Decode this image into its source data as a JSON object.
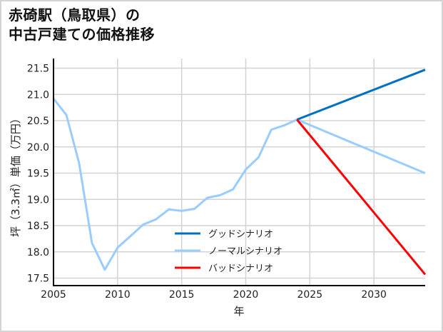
{
  "title": {
    "line1": "赤碕駅（鳥取県）の",
    "line2": "中古戸建ての価格推移"
  },
  "chart_data": {
    "type": "line",
    "title": "赤碕駅（鳥取県）の中古戸建ての価格推移",
    "xlabel": "年",
    "ylabel": "坪（3.3㎡）単価（万円）",
    "xlim": [
      2005,
      2034
    ],
    "ylim": [
      17.37,
      21.65
    ],
    "xticks": [
      2005,
      2010,
      2015,
      2020,
      2025,
      2030
    ],
    "yticks": [
      17.5,
      18.0,
      18.5,
      19.0,
      19.5,
      20.0,
      20.5,
      21.0,
      21.5
    ],
    "ytick_labels": [
      "17.5",
      "18.0",
      "18.5",
      "19.0",
      "19.5",
      "20.0",
      "20.5",
      "21.0",
      "21.5"
    ],
    "grid": true,
    "legend_position": "lower center (inside plot)",
    "series": [
      {
        "name": "ノーマルシナリオ",
        "color": "#99ccff",
        "x": [
          2005,
          2006,
          2007,
          2008,
          2009,
          2010,
          2011,
          2012,
          2013,
          2014,
          2015,
          2016,
          2017,
          2018,
          2019,
          2020,
          2021,
          2022,
          2023,
          2024,
          2034
        ],
        "values": [
          20.92,
          20.61,
          19.69,
          18.17,
          17.66,
          18.08,
          18.3,
          18.52,
          18.62,
          18.81,
          18.78,
          18.82,
          19.03,
          19.08,
          19.19,
          19.57,
          19.8,
          20.33,
          20.41,
          20.52,
          19.5
        ]
      },
      {
        "name": "グッドシナリオ",
        "color": "#0070c0",
        "x": [
          2024,
          2034
        ],
        "values": [
          20.52,
          21.47
        ]
      },
      {
        "name": "バッドシナリオ",
        "color": "#ff0000",
        "x": [
          2024,
          2034
        ],
        "values": [
          20.52,
          17.57
        ]
      }
    ]
  },
  "legend": {
    "items": [
      {
        "label": "グッドシナリオ",
        "color": "#0070c0"
      },
      {
        "label": "ノーマルシナリオ",
        "color": "#99ccff"
      },
      {
        "label": "バッドシナリオ",
        "color": "#ff0000"
      }
    ]
  },
  "colors": {
    "grid": "#d3d3d3",
    "axis": "#000000",
    "frame": "#d4d4d4"
  }
}
